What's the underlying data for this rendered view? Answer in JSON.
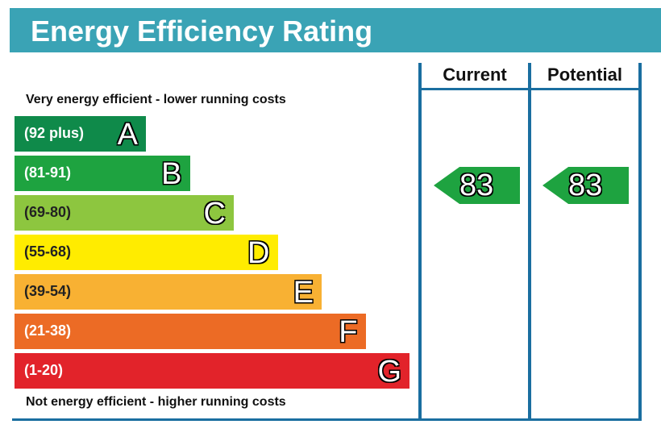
{
  "chart_data": {
    "type": "table",
    "title": "Energy Efficiency Rating",
    "columns": [
      "Current",
      "Potential"
    ],
    "top_note": "Very energy efficient - lower running costs",
    "bottom_note": "Not energy efficient - higher running costs",
    "bands": [
      {
        "range": "(92 plus)",
        "letter": "A",
        "color": "#0f8a4a"
      },
      {
        "range": "(81-91)",
        "letter": "B",
        "color": "#1ea340"
      },
      {
        "range": "(69-80)",
        "letter": "C",
        "color": "#8dc63f"
      },
      {
        "range": "(55-68)",
        "letter": "D",
        "color": "#ffec00"
      },
      {
        "range": "(39-54)",
        "letter": "E",
        "color": "#f8b133"
      },
      {
        "range": "(21-38)",
        "letter": "F",
        "color": "#ec6b25"
      },
      {
        "range": "(1-20)",
        "letter": "G",
        "color": "#e2232a"
      }
    ],
    "current": {
      "value": "83",
      "color": "#1ea340"
    },
    "potential": {
      "value": "83",
      "color": "#1ea340"
    }
  }
}
